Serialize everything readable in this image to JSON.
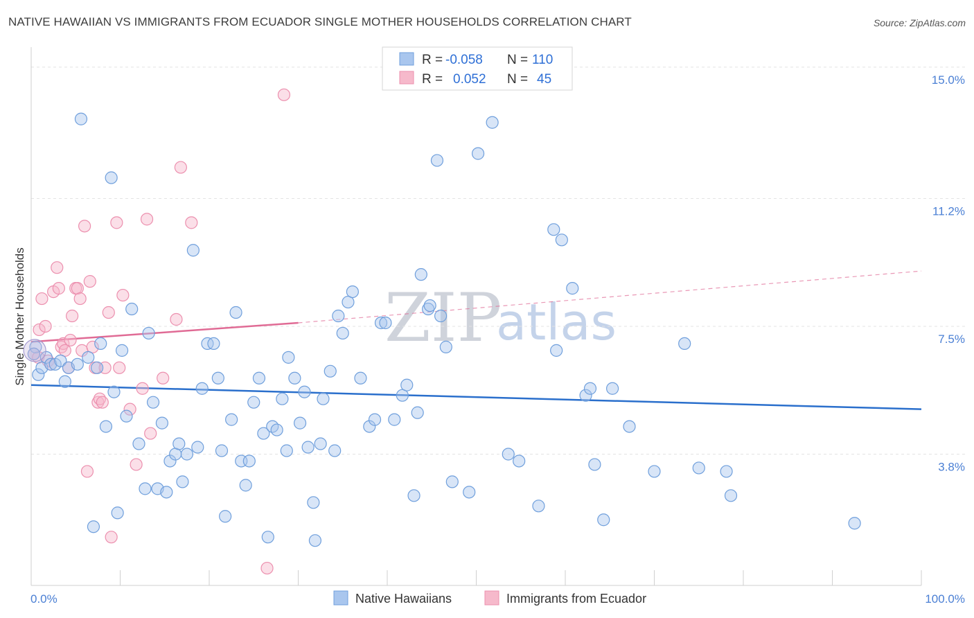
{
  "title": "NATIVE HAWAIIAN VS IMMIGRANTS FROM ECUADOR SINGLE MOTHER HOUSEHOLDS CORRELATION CHART",
  "source": "Source: ZipAtlas.com",
  "watermark": {
    "zip": "ZIP",
    "atlas": "atlas"
  },
  "chart_data": {
    "type": "scatter",
    "title": "NATIVE HAWAIIAN VS IMMIGRANTS FROM ECUADOR SINGLE MOTHER HOUSEHOLDS CORRELATION CHART",
    "xlabel": "",
    "ylabel": "Single Mother Households",
    "xlim": [
      0,
      100
    ],
    "ylim": [
      0,
      15.5
    ],
    "x_tick_labels": [
      "0.0%",
      "100.0%"
    ],
    "y_ticks": [
      3.8,
      7.5,
      11.2,
      15.0
    ],
    "y_tick_labels": [
      "3.8%",
      "7.5%",
      "11.2%",
      "15.0%"
    ],
    "grid": true,
    "legend_position": "top-center",
    "legend": [
      {
        "name": "Native Hawaiians",
        "r_label": "R =",
        "r": "-0.058",
        "n_label": "N =",
        "n": "110",
        "color": "#a9c6ee",
        "stroke": "#6f9fdc"
      },
      {
        "name": "Immigrants from Ecuador",
        "r_label": "R =",
        "r": " 0.052",
        "n_label": "N =",
        "n": " 45",
        "color": "#f6b9cb",
        "stroke": "#ec8fae"
      }
    ],
    "series": [
      {
        "name": "Native Hawaiians",
        "color": "#a9c6ee",
        "stroke": "#6f9fdc",
        "trend": {
          "x": [
            0,
            100
          ],
          "y": [
            5.8,
            5.1
          ],
          "color": "#2a6fcc",
          "dashed": false
        },
        "points": [
          [
            0.5,
            6.9
          ],
          [
            0.8,
            6.1
          ],
          [
            1.2,
            6.3
          ],
          [
            1.7,
            6.6
          ],
          [
            2.2,
            6.4
          ],
          [
            2.7,
            6.4
          ],
          [
            3.3,
            6.5
          ],
          [
            3.8,
            5.9
          ],
          [
            4.2,
            6.3
          ],
          [
            5.2,
            6.4
          ],
          [
            5.6,
            13.5
          ],
          [
            6.4,
            6.6
          ],
          [
            7.0,
            1.7
          ],
          [
            7.4,
            6.3
          ],
          [
            7.8,
            7.0
          ],
          [
            8.4,
            4.6
          ],
          [
            9.0,
            11.8
          ],
          [
            9.3,
            5.6
          ],
          [
            9.7,
            2.1
          ],
          [
            10.2,
            6.8
          ],
          [
            10.7,
            4.9
          ],
          [
            11.3,
            8.0
          ],
          [
            12.1,
            4.1
          ],
          [
            12.8,
            2.8
          ],
          [
            13.2,
            7.3
          ],
          [
            13.7,
            5.3
          ],
          [
            14.2,
            2.8
          ],
          [
            14.7,
            4.7
          ],
          [
            15.2,
            2.7
          ],
          [
            15.6,
            3.6
          ],
          [
            16.2,
            3.8
          ],
          [
            16.6,
            4.1
          ],
          [
            17.0,
            3.0
          ],
          [
            17.5,
            3.8
          ],
          [
            18.2,
            9.7
          ],
          [
            18.7,
            4.0
          ],
          [
            19.2,
            5.7
          ],
          [
            19.8,
            7.0
          ],
          [
            20.5,
            7.0
          ],
          [
            21.0,
            6.0
          ],
          [
            21.4,
            3.9
          ],
          [
            21.8,
            2.0
          ],
          [
            22.5,
            4.8
          ],
          [
            23.0,
            7.9
          ],
          [
            23.6,
            3.6
          ],
          [
            24.1,
            2.9
          ],
          [
            24.5,
            3.6
          ],
          [
            25.0,
            5.3
          ],
          [
            25.6,
            6.0
          ],
          [
            26.1,
            4.4
          ],
          [
            26.6,
            1.4
          ],
          [
            27.1,
            4.6
          ],
          [
            27.6,
            4.5
          ],
          [
            28.2,
            5.4
          ],
          [
            28.7,
            3.9
          ],
          [
            28.9,
            6.6
          ],
          [
            29.6,
            6.0
          ],
          [
            30.2,
            4.7
          ],
          [
            30.7,
            5.6
          ],
          [
            31.1,
            4.0
          ],
          [
            31.7,
            2.4
          ],
          [
            31.9,
            1.3
          ],
          [
            32.5,
            4.1
          ],
          [
            32.8,
            5.4
          ],
          [
            33.6,
            6.2
          ],
          [
            34.1,
            3.9
          ],
          [
            34.5,
            7.8
          ],
          [
            35.0,
            7.3
          ],
          [
            35.6,
            8.2
          ],
          [
            36.1,
            8.5
          ],
          [
            37.0,
            6.0
          ],
          [
            38.0,
            4.6
          ],
          [
            38.6,
            4.8
          ],
          [
            39.3,
            7.6
          ],
          [
            39.8,
            7.6
          ],
          [
            40.8,
            4.8
          ],
          [
            41.7,
            5.5
          ],
          [
            42.2,
            5.8
          ],
          [
            43.0,
            2.6
          ],
          [
            43.4,
            5.0
          ],
          [
            43.8,
            9.0
          ],
          [
            44.6,
            8.0
          ],
          [
            44.8,
            8.1
          ],
          [
            45.6,
            12.3
          ],
          [
            46.0,
            7.8
          ],
          [
            46.6,
            6.9
          ],
          [
            47.3,
            3.0
          ],
          [
            49.2,
            2.7
          ],
          [
            50.2,
            12.5
          ],
          [
            51.8,
            13.4
          ],
          [
            53.6,
            3.8
          ],
          [
            54.8,
            3.6
          ],
          [
            57.0,
            2.3
          ],
          [
            58.7,
            10.3
          ],
          [
            59.0,
            6.8
          ],
          [
            59.6,
            10.0
          ],
          [
            60.8,
            8.6
          ],
          [
            62.3,
            5.5
          ],
          [
            62.8,
            5.7
          ],
          [
            63.3,
            3.5
          ],
          [
            64.3,
            1.9
          ],
          [
            65.3,
            5.7
          ],
          [
            67.2,
            4.6
          ],
          [
            70.0,
            3.3
          ],
          [
            73.4,
            7.0
          ],
          [
            75.0,
            3.4
          ],
          [
            78.1,
            3.3
          ],
          [
            78.6,
            2.6
          ],
          [
            92.5,
            1.8
          ],
          [
            0.3,
            6.7
          ]
        ]
      },
      {
        "name": "Immigrants from Ecuador",
        "color": "#f6b9cb",
        "stroke": "#ec8fae",
        "trend": {
          "x": [
            0,
            30
          ],
          "y": [
            7.05,
            7.6
          ],
          "color": "#e06b95",
          "dashed": false,
          "ext": {
            "x": [
              30,
              100
            ],
            "y": [
              7.6,
              9.1
            ],
            "dashed": true
          }
        },
        "points": [
          [
            0.3,
            6.7
          ],
          [
            0.8,
            6.6
          ],
          [
            0.9,
            7.4
          ],
          [
            1.2,
            8.3
          ],
          [
            1.6,
            7.5
          ],
          [
            1.9,
            6.5
          ],
          [
            2.2,
            6.4
          ],
          [
            2.5,
            8.5
          ],
          [
            2.9,
            9.2
          ],
          [
            3.1,
            8.6
          ],
          [
            3.4,
            6.9
          ],
          [
            3.6,
            7.0
          ],
          [
            3.8,
            6.8
          ],
          [
            4.2,
            6.3
          ],
          [
            4.4,
            7.1
          ],
          [
            4.6,
            7.8
          ],
          [
            5.0,
            8.6
          ],
          [
            5.2,
            8.6
          ],
          [
            5.5,
            8.3
          ],
          [
            5.7,
            6.8
          ],
          [
            6.0,
            10.4
          ],
          [
            6.3,
            3.3
          ],
          [
            6.6,
            8.8
          ],
          [
            6.9,
            6.9
          ],
          [
            7.2,
            6.3
          ],
          [
            7.5,
            5.3
          ],
          [
            7.7,
            5.4
          ],
          [
            8.0,
            5.3
          ],
          [
            8.3,
            6.3
          ],
          [
            8.7,
            7.9
          ],
          [
            9.0,
            1.4
          ],
          [
            9.6,
            10.5
          ],
          [
            9.9,
            6.3
          ],
          [
            10.3,
            8.4
          ],
          [
            11.1,
            5.1
          ],
          [
            11.8,
            3.5
          ],
          [
            12.5,
            5.7
          ],
          [
            13.0,
            10.6
          ],
          [
            13.4,
            4.4
          ],
          [
            14.8,
            6.0
          ],
          [
            16.3,
            7.7
          ],
          [
            16.8,
            12.1
          ],
          [
            18.0,
            10.5
          ],
          [
            26.5,
            0.5
          ],
          [
            28.4,
            14.2
          ]
        ]
      }
    ]
  }
}
